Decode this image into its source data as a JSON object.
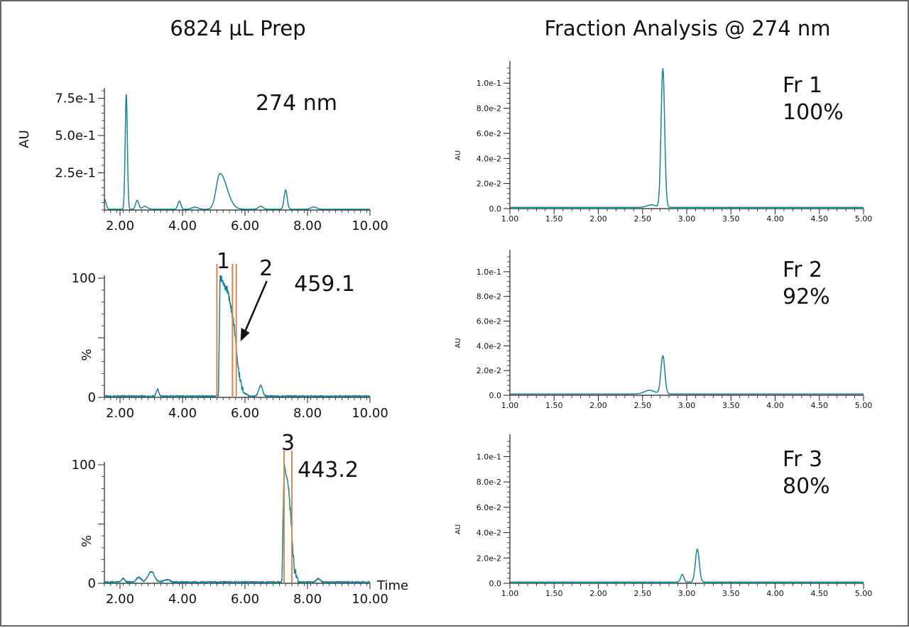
{
  "headings": {
    "left": "6824 µL Prep",
    "right": "Fraction Analysis @ 274 nm"
  },
  "time_label": "Time",
  "chart_data": [
    {
      "type": "line",
      "panel": "left-top",
      "tag": "274 nm",
      "ylabel": "AU",
      "xlim": [
        1.5,
        10.0
      ],
      "ylim": [
        0,
        0.8
      ],
      "xticks": [
        "2.00",
        "4.00",
        "6.00",
        "8.00",
        "10.00"
      ],
      "yticks": [
        {
          "v": 0.25,
          "t": "2.5e-1"
        },
        {
          "v": 0.5,
          "t": "5.0e-1"
        },
        {
          "v": 0.75,
          "t": "7.5e-1"
        }
      ],
      "baseline": 0.005,
      "peaks": [
        [
          1.5,
          0.07,
          0.05
        ],
        [
          2.2,
          0.77,
          0.035
        ],
        [
          2.55,
          0.06,
          0.05
        ],
        [
          2.8,
          0.02,
          0.08
        ],
        [
          3.9,
          0.055,
          0.05
        ],
        [
          4.4,
          0.015,
          0.1
        ],
        [
          5.2,
          0.24,
          0.12,
          0.22
        ],
        [
          6.5,
          0.02,
          0.08
        ],
        [
          7.3,
          0.13,
          0.05
        ],
        [
          8.2,
          0.015,
          0.1
        ]
      ]
    },
    {
      "type": "line",
      "panel": "left-mid",
      "tag": "459.1",
      "ylabel": "%",
      "xlim": [
        1.5,
        10.0
      ],
      "ylim": [
        0,
        100
      ],
      "xticks": [
        "2.00",
        "4.00",
        "6.00",
        "8.00",
        "10.00"
      ],
      "yticks": [
        {
          "v": 0,
          "t": "0"
        },
        {
          "v": 50,
          "t": ""
        },
        {
          "v": 100,
          "t": "100"
        }
      ],
      "baseline": 1,
      "plateau": {
        "start": 5.15,
        "top": 100,
        "points": [
          [
            5.15,
            0
          ],
          [
            5.2,
            100
          ],
          [
            5.45,
            88
          ],
          [
            5.65,
            60
          ],
          [
            5.8,
            20
          ],
          [
            5.95,
            3
          ],
          [
            6.1,
            1
          ]
        ]
      },
      "peaks": [
        [
          3.2,
          6,
          0.04
        ],
        [
          6.5,
          9,
          0.06
        ]
      ],
      "fractions": [
        {
          "label": "1",
          "x1": 5.1,
          "x2": 5.6
        },
        {
          "label": "2",
          "x1": 5.6,
          "x2": 5.72
        }
      ]
    },
    {
      "type": "line",
      "panel": "left-bottom",
      "tag": "443.2",
      "ylabel": "%",
      "xlim": [
        1.5,
        10.0
      ],
      "ylim": [
        0,
        100
      ],
      "xticks": [
        "2.00",
        "4.00",
        "6.00",
        "8.00",
        "10.00"
      ],
      "yticks": [
        {
          "v": 0,
          "t": "0"
        },
        {
          "v": 50,
          "t": ""
        },
        {
          "v": 100,
          "t": "100"
        }
      ],
      "baseline": 1,
      "plateau": {
        "start": 7.2,
        "top": 100,
        "points": [
          [
            7.18,
            0
          ],
          [
            7.25,
            98
          ],
          [
            7.35,
            88
          ],
          [
            7.42,
            72
          ],
          [
            7.5,
            40
          ],
          [
            7.58,
            10
          ],
          [
            7.7,
            2
          ]
        ]
      },
      "peaks": [
        [
          2.1,
          3,
          0.05
        ],
        [
          2.6,
          4,
          0.08
        ],
        [
          3.0,
          9,
          0.1
        ],
        [
          3.5,
          2,
          0.1
        ],
        [
          8.35,
          3,
          0.06
        ]
      ],
      "fractions": [
        {
          "label": "3",
          "x1": 7.25,
          "x2": 7.5
        }
      ]
    },
    {
      "type": "line",
      "panel": "right-top",
      "tag": "Fr 1",
      "purity": "100%",
      "ylabel": "AU",
      "xlim": [
        1.0,
        5.0
      ],
      "ylim": [
        0,
        0.112
      ],
      "xticks": [
        "1.00",
        "1.50",
        "2.00",
        "2.50",
        "3.00",
        "3.50",
        "4.00",
        "4.50",
        "5.00"
      ],
      "yticks": [
        {
          "v": 0,
          "t": "0.0"
        },
        {
          "v": 0.02,
          "t": "2.0e-2"
        },
        {
          "v": 0.04,
          "t": "4.0e-2"
        },
        {
          "v": 0.06,
          "t": "6.0e-2"
        },
        {
          "v": 0.08,
          "t": "8.0e-2"
        },
        {
          "v": 0.1,
          "t": "1.0e-1"
        }
      ],
      "baseline": 0.001,
      "peaks": [
        [
          2.6,
          0.002,
          0.05
        ],
        [
          2.73,
          0.111,
          0.02
        ]
      ]
    },
    {
      "type": "line",
      "panel": "right-mid",
      "tag": "Fr 2",
      "purity": "92%",
      "ylabel": "AU",
      "xlim": [
        1.0,
        5.0
      ],
      "ylim": [
        0,
        0.112
      ],
      "xticks": [
        "1.00",
        "1.50",
        "2.00",
        "2.50",
        "3.00",
        "3.50",
        "4.00",
        "4.50",
        "5.00"
      ],
      "yticks": [
        {
          "v": 0,
          "t": "0.0"
        },
        {
          "v": 0.02,
          "t": "2.0e-2"
        },
        {
          "v": 0.04,
          "t": "4.0e-2"
        },
        {
          "v": 0.06,
          "t": "6.0e-2"
        },
        {
          "v": 0.08,
          "t": "8.0e-2"
        },
        {
          "v": 0.1,
          "t": "1.0e-1"
        }
      ],
      "baseline": 0.001,
      "peaks": [
        [
          2.58,
          0.003,
          0.06
        ],
        [
          2.73,
          0.031,
          0.022
        ]
      ]
    },
    {
      "type": "line",
      "panel": "right-bottom",
      "tag": "Fr 3",
      "purity": "80%",
      "ylabel": "AU",
      "xlim": [
        1.0,
        5.0
      ],
      "ylim": [
        0,
        0.112
      ],
      "xticks": [
        "1.00",
        "1.50",
        "2.00",
        "2.50",
        "3.00",
        "3.50",
        "4.00",
        "4.50",
        "5.00"
      ],
      "yticks": [
        {
          "v": 0,
          "t": "0.0"
        },
        {
          "v": 0.02,
          "t": "2.0e-2"
        },
        {
          "v": 0.04,
          "t": "4.0e-2"
        },
        {
          "v": 0.06,
          "t": "6.0e-2"
        },
        {
          "v": 0.08,
          "t": "8.0e-2"
        },
        {
          "v": 0.1,
          "t": "1.0e-1"
        }
      ],
      "baseline": 0.001,
      "peaks": [
        [
          2.95,
          0.006,
          0.018
        ],
        [
          3.12,
          0.026,
          0.022
        ]
      ]
    }
  ]
}
